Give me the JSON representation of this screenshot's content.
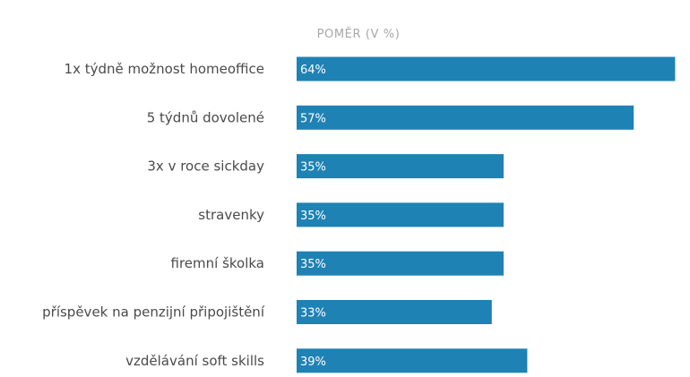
{
  "chart_data": {
    "type": "bar",
    "orientation": "horizontal",
    "header": "POMĚR (V %)",
    "categories": [
      "1x týdně možnost homeoffice",
      "5 týdnů dovolené",
      "3x v roce sickday",
      "stravenky",
      "firemní školka",
      "příspěvek na penzijní připojištění",
      "vzdělávání soft skills"
    ],
    "values": [
      64,
      57,
      35,
      35,
      35,
      33,
      39
    ],
    "value_labels": [
      "64%",
      "57%",
      "35%",
      "35%",
      "35%",
      "33%",
      "39%"
    ],
    "unit": "%",
    "bar_color": "#1f82b4",
    "label_color": "#4a4a4a",
    "header_color": "#a8a8a8",
    "value_label_color": "#ffffff",
    "legend": "none",
    "grid": false
  }
}
